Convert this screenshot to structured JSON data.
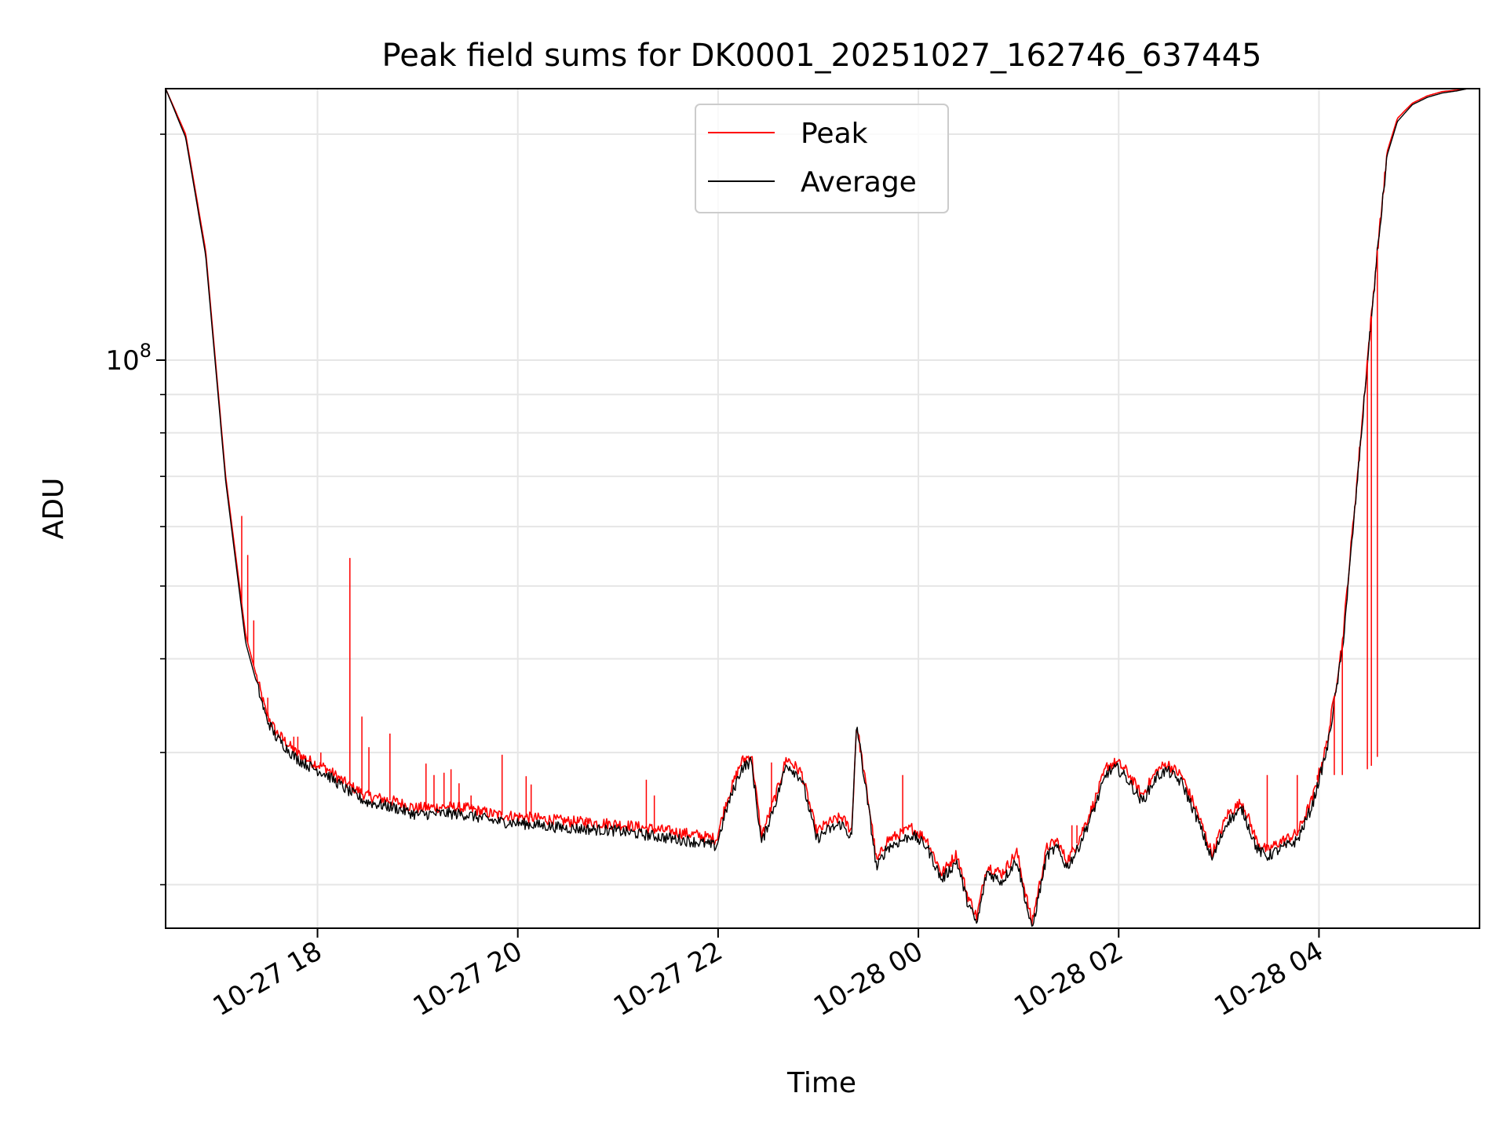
{
  "chart_data": {
    "type": "line",
    "title": "Peak field sums for DK0001_20251027_162746_637445",
    "xlabel": "Time",
    "ylabel": "ADU",
    "yscale": "log",
    "ylim": [
      17500000,
      230000000
    ],
    "yticks_major": [
      {
        "value": 100000000,
        "base": "10",
        "exp": "8"
      }
    ],
    "yticks_minor": [
      20000000,
      30000000,
      40000000,
      50000000,
      60000000,
      70000000,
      80000000,
      90000000,
      200000000
    ],
    "x_unit": "hours since 2025-10-27 16:27",
    "xlim": [
      0,
      13.12
    ],
    "xticks": [
      {
        "value": 1.5167,
        "label": "10-27 18"
      },
      {
        "value": 3.5167,
        "label": "10-27 20"
      },
      {
        "value": 5.5167,
        "label": "10-27 22"
      },
      {
        "value": 7.5167,
        "label": "10-28 00"
      },
      {
        "value": 9.5167,
        "label": "10-28 02"
      },
      {
        "value": 11.5167,
        "label": "10-28 04"
      }
    ],
    "grid": true,
    "legend": {
      "position": "top-center",
      "entries": [
        "Peak",
        "Average"
      ]
    },
    "colors": {
      "Peak": "#ff0000",
      "Average": "#000000",
      "grid": "#e6e6e6"
    },
    "series": [
      {
        "name": "Peak",
        "color": "#ff0000",
        "x": [
          0,
          0.2,
          0.4,
          0.6,
          0.8,
          1.0,
          1.1,
          1.2,
          1.3,
          1.45,
          1.6,
          1.8,
          2.0,
          2.3,
          2.5,
          2.8,
          3.0,
          3.3,
          3.6,
          4.0,
          4.5,
          5.0,
          5.3,
          5.5,
          5.6,
          5.75,
          5.85,
          5.95,
          6.1,
          6.2,
          6.35,
          6.5,
          6.6,
          6.75,
          6.85,
          6.9,
          7.05,
          7.1,
          7.2,
          7.35,
          7.45,
          7.6,
          7.75,
          7.9,
          8.0,
          8.1,
          8.2,
          8.35,
          8.5,
          8.65,
          8.8,
          8.9,
          9.0,
          9.1,
          9.25,
          9.4,
          9.5,
          9.6,
          9.75,
          9.9,
          10.0,
          10.15,
          10.3,
          10.45,
          10.6,
          10.75,
          10.9,
          11.0,
          11.1,
          11.3,
          11.45,
          11.6,
          11.75,
          11.9,
          12.0,
          12.1,
          12.2,
          12.3,
          12.45,
          12.6,
          12.75,
          12.9,
          13.0,
          13.12
        ],
        "values": [
          230000000,
          200000000,
          140000000,
          70000000,
          43000000,
          34000000,
          32000000,
          31000000,
          30000000,
          29200000,
          28600000,
          27300000,
          26300000,
          25800000,
          25300000,
          25400000,
          25300000,
          24800000,
          24600000,
          24300000,
          24100000,
          23600000,
          23300000,
          23000000,
          25800000,
          29200000,
          29800000,
          23200000,
          26500000,
          29500000,
          28200000,
          23500000,
          24100000,
          24600000,
          23600000,
          32800000,
          24100000,
          21400000,
          22900000,
          23400000,
          23800000,
          23000000,
          20700000,
          22000000,
          19500000,
          18100000,
          21200000,
          20700000,
          22100000,
          17800000,
          22400000,
          22900000,
          21500000,
          22700000,
          25300000,
          28800000,
          29100000,
          28300000,
          26300000,
          28400000,
          29000000,
          27900000,
          25000000,
          22000000,
          24800000,
          25800000,
          22800000,
          22200000,
          22700000,
          23400000,
          26000000,
          31000000,
          42000000,
          70000000,
          100000000,
          140000000,
          190000000,
          210000000,
          220000000,
          225000000,
          228000000,
          229000000,
          230000000,
          230000000
        ]
      },
      {
        "name": "Average",
        "color": "#000000",
        "x": [
          0,
          0.2,
          0.4,
          0.6,
          0.8,
          1.0,
          1.1,
          1.2,
          1.3,
          1.45,
          1.6,
          1.8,
          2.0,
          2.3,
          2.5,
          2.8,
          3.0,
          3.3,
          3.6,
          4.0,
          4.5,
          5.0,
          5.3,
          5.5,
          5.6,
          5.75,
          5.85,
          5.95,
          6.1,
          6.2,
          6.35,
          6.5,
          6.6,
          6.75,
          6.85,
          6.9,
          7.05,
          7.1,
          7.2,
          7.35,
          7.45,
          7.6,
          7.75,
          7.9,
          8.0,
          8.1,
          8.2,
          8.35,
          8.5,
          8.65,
          8.8,
          8.9,
          9.0,
          9.1,
          9.25,
          9.4,
          9.5,
          9.6,
          9.75,
          9.9,
          10.0,
          10.15,
          10.3,
          10.45,
          10.6,
          10.75,
          10.9,
          11.0,
          11.1,
          11.3,
          11.45,
          11.6,
          11.75,
          11.9,
          12.0,
          12.1,
          12.2,
          12.3,
          12.45,
          12.6,
          12.75,
          12.9,
          13.0,
          13.12
        ],
        "values": [
          230000000,
          198000000,
          138000000,
          69000000,
          42000000,
          33500000,
          31500000,
          30500000,
          29500000,
          28700000,
          28100000,
          26800000,
          25800000,
          25300000,
          24800000,
          24900000,
          24800000,
          24300000,
          24100000,
          23800000,
          23600000,
          23100000,
          22800000,
          22500000,
          25200000,
          28600000,
          29200000,
          22700000,
          26000000,
          29000000,
          27700000,
          23000000,
          23600000,
          24100000,
          23100000,
          32800000,
          23600000,
          21000000,
          22400000,
          22900000,
          23300000,
          22500000,
          20300000,
          21500000,
          19100000,
          17700000,
          20800000,
          20200000,
          21600000,
          17400000,
          21900000,
          22400000,
          21100000,
          22200000,
          24800000,
          28200000,
          28600000,
          27700000,
          25800000,
          27900000,
          28400000,
          27300000,
          24500000,
          21600000,
          24300000,
          25200000,
          22300000,
          21800000,
          22200000,
          22900000,
          25500000,
          30400000,
          41000000,
          69000000,
          99000000,
          139000000,
          188000000,
          208000000,
          219000000,
          224000000,
          227000000,
          228500000,
          230000000,
          230000000
        ]
      }
    ],
    "peak_spikes": [
      {
        "x": 0.76,
        "value": 62000000
      },
      {
        "x": 0.82,
        "value": 55000000
      },
      {
        "x": 0.88,
        "value": 45000000
      },
      {
        "x": 1.02,
        "value": 35500000
      },
      {
        "x": 1.28,
        "value": 31500000
      },
      {
        "x": 1.32,
        "value": 31500000
      },
      {
        "x": 1.55,
        "value": 30000000
      },
      {
        "x": 1.84,
        "value": 54500000
      },
      {
        "x": 1.96,
        "value": 33500000
      },
      {
        "x": 2.03,
        "value": 30500000
      },
      {
        "x": 2.24,
        "value": 31800000
      },
      {
        "x": 2.6,
        "value": 29000000
      },
      {
        "x": 2.68,
        "value": 28000000
      },
      {
        "x": 2.78,
        "value": 28200000
      },
      {
        "x": 2.85,
        "value": 28500000
      },
      {
        "x": 2.93,
        "value": 27300000
      },
      {
        "x": 3.05,
        "value": 26300000
      },
      {
        "x": 3.36,
        "value": 29800000
      },
      {
        "x": 3.6,
        "value": 27900000
      },
      {
        "x": 3.65,
        "value": 27200000
      },
      {
        "x": 4.2,
        "value": 24600000
      },
      {
        "x": 4.8,
        "value": 27600000
      },
      {
        "x": 4.88,
        "value": 26300000
      },
      {
        "x": 6.05,
        "value": 29100000
      },
      {
        "x": 7.36,
        "value": 28000000
      },
      {
        "x": 9.05,
        "value": 24000000
      },
      {
        "x": 9.1,
        "value": 24000000
      },
      {
        "x": 11.0,
        "value": 28000000
      },
      {
        "x": 11.3,
        "value": 28000000
      },
      {
        "x": 11.5,
        "value": 28000000
      },
      {
        "x": 11.67,
        "value": 28000000
      },
      {
        "x": 11.75,
        "value": 28000000
      },
      {
        "x": 12.0,
        "value": 28500000
      },
      {
        "x": 12.04,
        "value": 28800000
      },
      {
        "x": 12.1,
        "value": 29600000
      }
    ]
  }
}
